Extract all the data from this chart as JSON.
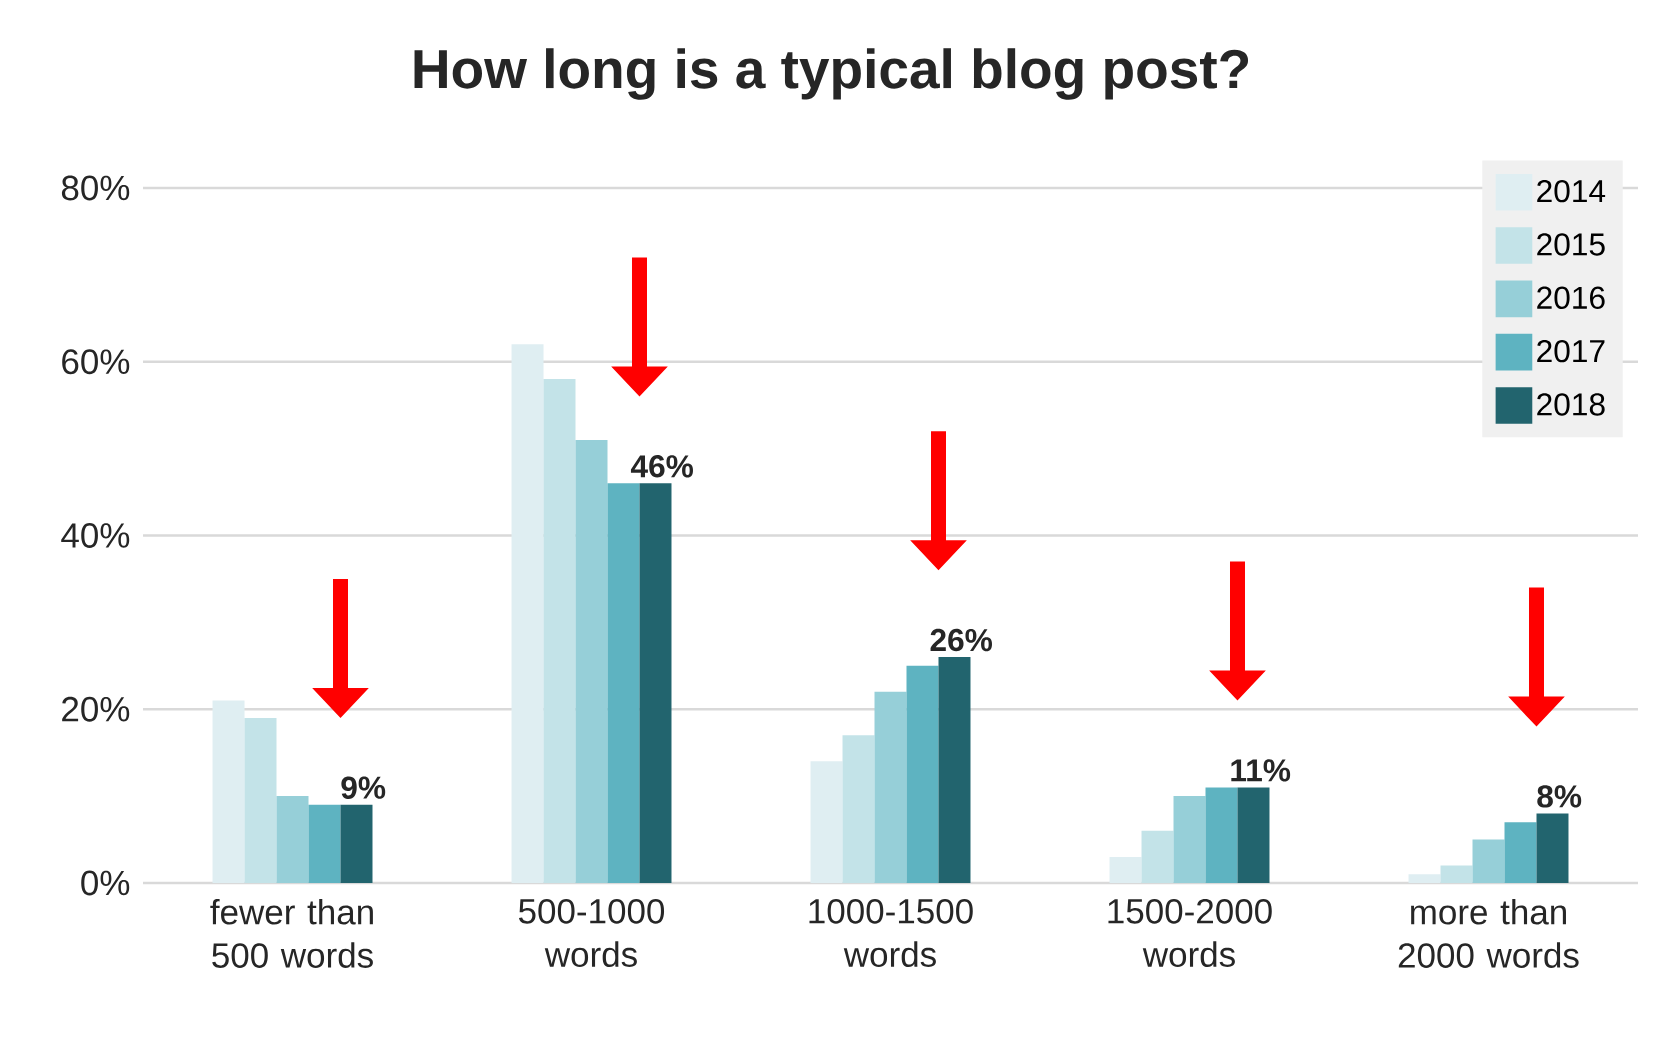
{
  "chart_data": {
    "type": "bar",
    "title": "How long is a typical blog post?",
    "categories": [
      "fewer than 500 words",
      "500-1000 words",
      "1000-1500 words",
      "1500-2000 words",
      "more than 2000 words"
    ],
    "series": [
      {
        "name": "2014",
        "color": "#dfeef2",
        "values": [
          21,
          62,
          14,
          3,
          1
        ]
      },
      {
        "name": "2015",
        "color": "#c3e3e8",
        "values": [
          19,
          58,
          17,
          6,
          2
        ]
      },
      {
        "name": "2016",
        "color": "#96cfd8",
        "values": [
          10,
          51,
          22,
          10,
          5
        ]
      },
      {
        "name": "2017",
        "color": "#5eb3c1",
        "values": [
          9,
          46,
          25,
          11,
          7
        ]
      },
      {
        "name": "2018",
        "color": "#22646e",
        "values": [
          9,
          46,
          26,
          11,
          8
        ],
        "value_labels": [
          "9%",
          "46%",
          "26%",
          "11%",
          "8%"
        ]
      }
    ],
    "ylim": [
      0,
      80
    ],
    "yticks": [
      {
        "value": 0,
        "label": "0%"
      },
      {
        "value": 20,
        "label": "20%"
      },
      {
        "value": 40,
        "label": "40%"
      },
      {
        "value": 60,
        "label": "60%"
      },
      {
        "value": 80,
        "label": "80%"
      }
    ],
    "grid": "y",
    "legend": "top right"
  }
}
